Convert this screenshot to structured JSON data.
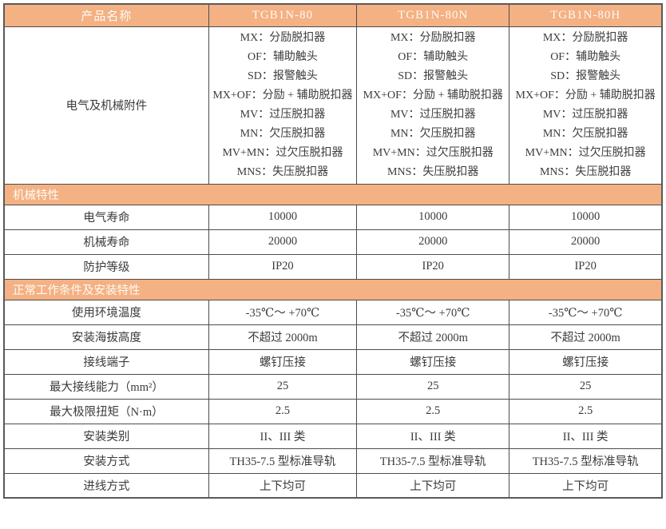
{
  "header": {
    "product_name_label": "产品名称",
    "products": [
      "TGB1N-80",
      "TGB1N-80N",
      "TGB1N-80H"
    ]
  },
  "accessories": {
    "label": "电气及机械附件",
    "lines": [
      "MX：分励脱扣器",
      "OF：辅助触头",
      "SD：报警触头",
      "MX+OF：分励 + 辅助脱扣器",
      "MV：过压脱扣器",
      "MN：欠压脱扣器",
      "MV+MN：过欠压脱扣器",
      "MNS：失压脱扣器"
    ]
  },
  "sections": [
    {
      "title": "机械特性",
      "rows": [
        {
          "label": "电气寿命",
          "values": [
            "10000",
            "10000",
            "10000"
          ]
        },
        {
          "label": "机械寿命",
          "values": [
            "20000",
            "20000",
            "20000"
          ]
        },
        {
          "label": "防护等级",
          "values": [
            "IP20",
            "IP20",
            "IP20"
          ]
        }
      ]
    },
    {
      "title": "正常工作条件及安装特性",
      "rows": [
        {
          "label": "使用环境温度",
          "values": [
            "-35℃～ +70℃",
            "-35℃～ +70℃",
            "-35℃～ +70℃"
          ]
        },
        {
          "label": "安装海拔高度",
          "values": [
            "不超过 2000m",
            "不超过 2000m",
            "不超过 2000m"
          ]
        },
        {
          "label": "接线端子",
          "values": [
            "螺钉压接",
            "螺钉压接",
            "螺钉压接"
          ]
        },
        {
          "label": "最大接线能力（mm²）",
          "values": [
            "25",
            "25",
            "25"
          ]
        },
        {
          "label": "最大极限扭矩（N·m）",
          "values": [
            "2.5",
            "2.5",
            "2.5"
          ]
        },
        {
          "label": "安装类别",
          "values": [
            "II、III 类",
            "II、III 类",
            "II、III 类"
          ]
        },
        {
          "label": "安装方式",
          "values": [
            "TH35-7.5 型标准导轨",
            "TH35-7.5 型标准导轨",
            "TH35-7.5 型标准导轨"
          ]
        },
        {
          "label": "进线方式",
          "values": [
            "上下均可",
            "上下均可",
            "上下均可"
          ]
        }
      ]
    }
  ],
  "colors": {
    "band_background": "#f4b183",
    "band_text": "#fdfbf5",
    "body_text": "#3b3b3b",
    "border": "#595959"
  }
}
